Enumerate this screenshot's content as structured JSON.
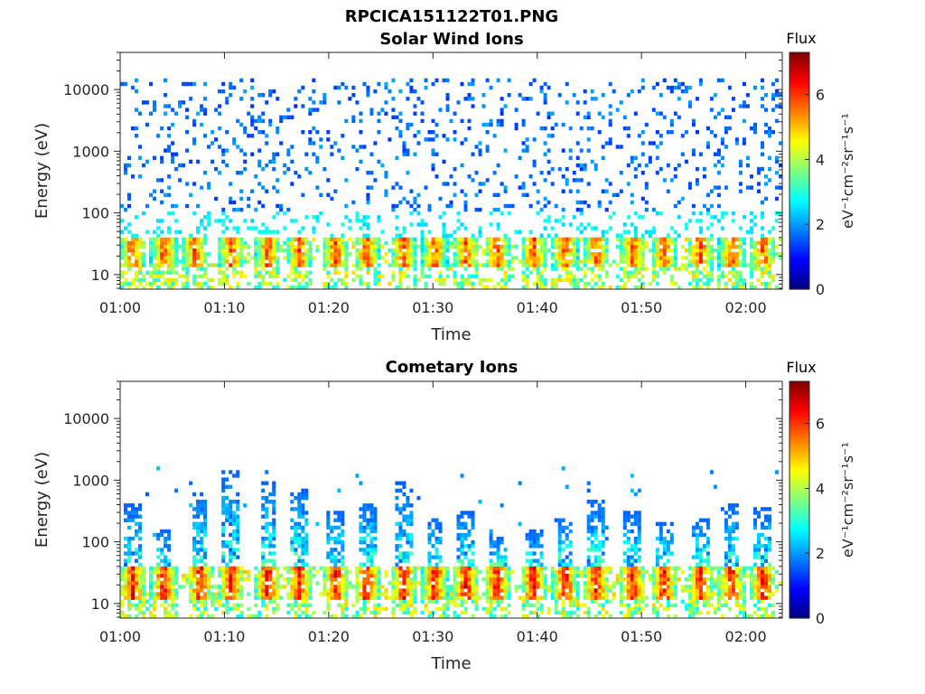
{
  "figure": {
    "title": "RPCICA151122T01.PNG"
  },
  "chart_data": [
    {
      "type": "heatmap",
      "title": "Solar Wind Ions",
      "xlabel": "Time",
      "ylabel": "Energy (eV)",
      "x_ticks": [
        "01:00",
        "01:10",
        "01:20",
        "01:30",
        "01:40",
        "01:50",
        "02:00"
      ],
      "x_tick_minutes": [
        0,
        10,
        20,
        30,
        40,
        50,
        60
      ],
      "xlim_minutes": [
        0,
        63.5
      ],
      "y_ticks": [
        "10",
        "100",
        "1000",
        "10000"
      ],
      "y_tick_values": [
        10,
        100,
        1000,
        10000
      ],
      "ylim": [
        5.8,
        40000
      ],
      "y_scale": "log",
      "grid": false,
      "colorbar": {
        "label": "Flux",
        "units": "eV⁻¹cm⁻²sr⁻¹s⁻¹",
        "ticks": [
          "0",
          "2",
          "4",
          "6"
        ],
        "tick_values": [
          0,
          2,
          4,
          6
        ],
        "range": [
          0,
          7.3
        ],
        "colormap": "jet"
      },
      "bursts_minutes": [
        1,
        4,
        7,
        10.5,
        14,
        17,
        20.5,
        23.5,
        27,
        30,
        33,
        36,
        39.5,
        42.5,
        45.5,
        49,
        52,
        55.5,
        58.5,
        61.5
      ],
      "burst_energy_eV": [
        13,
        40
      ],
      "burst_peak_flux": 6.5,
      "background_energy_eV": [
        100,
        15000
      ],
      "background_flux": 1.7
    },
    {
      "type": "heatmap",
      "title": "Cometary Ions",
      "xlabel": "Time",
      "ylabel": "Energy (eV)",
      "x_ticks": [
        "01:00",
        "01:10",
        "01:20",
        "01:30",
        "01:40",
        "01:50",
        "02:00"
      ],
      "x_tick_minutes": [
        0,
        10,
        20,
        30,
        40,
        50,
        60
      ],
      "xlim_minutes": [
        0,
        63.5
      ],
      "y_ticks": [
        "10",
        "100",
        "1000",
        "10000"
      ],
      "y_tick_values": [
        10,
        100,
        1000,
        10000
      ],
      "ylim": [
        5.8,
        40000
      ],
      "y_scale": "log",
      "grid": false,
      "colorbar": {
        "label": "Flux",
        "units": "eV⁻¹cm⁻²sr⁻¹s⁻¹",
        "ticks": [
          "0",
          "2",
          "4",
          "6"
        ],
        "tick_values": [
          0,
          2,
          4,
          6
        ],
        "range": [
          0,
          7.3
        ],
        "colormap": "jet"
      },
      "bursts_minutes": [
        1,
        4,
        7.5,
        10.5,
        14,
        17,
        20.5,
        23.5,
        27,
        30,
        33,
        36,
        39.5,
        42.5,
        45.5,
        49,
        52,
        55.5,
        58.5,
        61.5
      ],
      "burst_energy_eV": [
        11,
        40
      ],
      "burst_peak_flux": 7.0,
      "plume_top_eV": [
        400,
        150,
        600,
        1500,
        900,
        700,
        300,
        500,
        900,
        250,
        300,
        120,
        150,
        250,
        500,
        300,
        200,
        250,
        400,
        350
      ],
      "background_energy_eV": [
        100,
        2000
      ],
      "background_flux": 2.0
    }
  ]
}
